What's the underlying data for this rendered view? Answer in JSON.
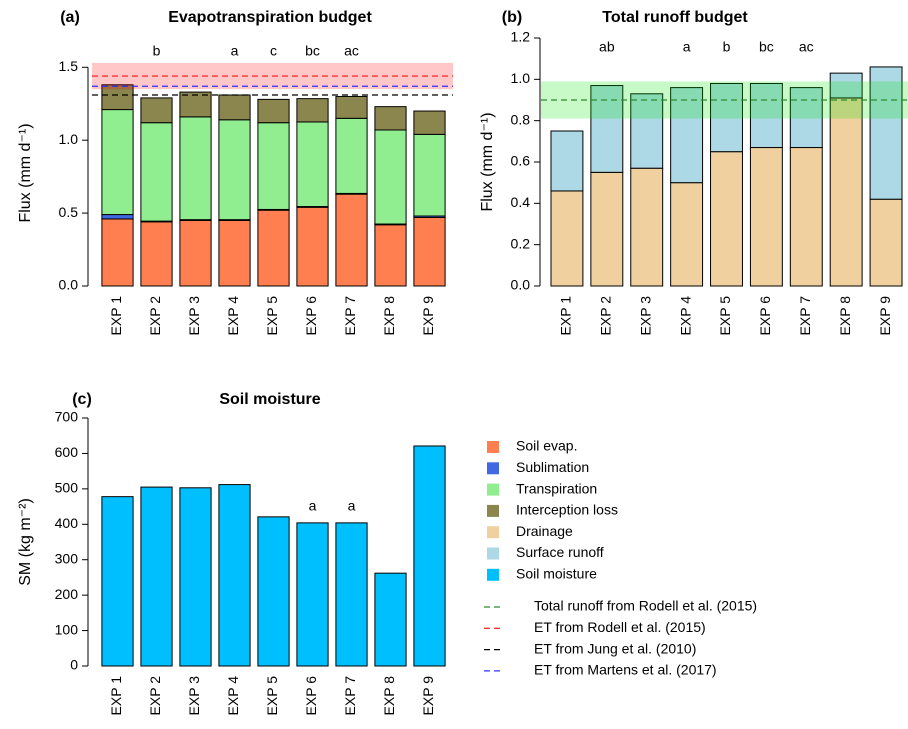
{
  "chart_data": [
    {
      "type": "stacked_bar",
      "panel": "(a)",
      "title": "Evapotranspiration budget",
      "y_label": "Flux (mm d⁻¹)",
      "categories": [
        "EXP 1",
        "EXP 2",
        "EXP 3",
        "EXP 4",
        "EXP 5",
        "EXP 6",
        "EXP 7",
        "EXP 8",
        "EXP 9"
      ],
      "series": [
        {
          "name": "Soil evap.",
          "color": "#ff7f50",
          "values": [
            0.46,
            0.44,
            0.45,
            0.45,
            0.52,
            0.54,
            0.63,
            0.42,
            0.47
          ]
        },
        {
          "name": "Sublimation",
          "color": "#4169e1",
          "values": [
            0.03,
            0.005,
            0.005,
            0.005,
            0.005,
            0.005,
            0.005,
            0.005,
            0.01
          ]
        },
        {
          "name": "Transpiration",
          "color": "#90ee90",
          "values": [
            0.72,
            0.675,
            0.705,
            0.685,
            0.595,
            0.58,
            0.515,
            0.645,
            0.56
          ]
        },
        {
          "name": "Interception loss",
          "color": "#8b864e",
          "values": [
            0.17,
            0.17,
            0.17,
            0.17,
            0.16,
            0.16,
            0.15,
            0.16,
            0.16
          ]
        }
      ],
      "letters": [
        null,
        "b",
        null,
        "a",
        "c",
        "bc",
        "ac",
        null,
        null
      ],
      "reference_lines": [
        {
          "name": "ET from Rodell et al. (2015)",
          "value": 1.44,
          "band": [
            1.35,
            1.53
          ],
          "color": "#ff3030",
          "band_color": "rgba(255,0,0,0.22)"
        },
        {
          "name": "ET from Jung et al. (2010)",
          "value": 1.31,
          "color": "#000000"
        },
        {
          "name": "ET from Martens et al. (2017)",
          "value": 1.37,
          "color": "#3030ff"
        }
      ],
      "ylim": [
        0,
        1.55
      ],
      "yticks": [
        {
          "value": 0,
          "label": "0.0"
        },
        0.5,
        {
          "value": 1,
          "label": "1.0"
        },
        1.5
      ]
    },
    {
      "type": "stacked_bar",
      "panel": "(b)",
      "title": "Total runoff budget",
      "y_label": "Flux (mm d⁻¹)",
      "categories": [
        "EXP 1",
        "EXP 2",
        "EXP 3",
        "EXP 4",
        "EXP 5",
        "EXP 6",
        "EXP 7",
        "EXP 8",
        "EXP 9"
      ],
      "series": [
        {
          "name": "Drainage",
          "color": "#efd09e",
          "values": [
            0.46,
            0.55,
            0.57,
            0.5,
            0.65,
            0.67,
            0.67,
            0.91,
            0.42
          ]
        },
        {
          "name": "Surface runoff",
          "color": "#add8e6",
          "values": [
            0.29,
            0.42,
            0.36,
            0.46,
            0.33,
            0.31,
            0.29,
            0.12,
            0.64
          ]
        }
      ],
      "letters": [
        null,
        "ab",
        null,
        "a",
        "b",
        "bc",
        "ac",
        null,
        null
      ],
      "reference_lines": [
        {
          "name": "Total runoff from Rodell et al. (2015)",
          "value": 0.9,
          "band": [
            0.81,
            0.99
          ],
          "color": "#2e8b2e",
          "band_color": "rgba(0,230,0,0.22)"
        }
      ],
      "ylim": [
        0,
        1.2
      ],
      "yticks": [
        {
          "value": 0,
          "label": "0.0"
        },
        0.2,
        0.4,
        0.6,
        0.8,
        {
          "value": 1,
          "label": "1.0"
        },
        1.2
      ]
    },
    {
      "type": "stacked_bar",
      "panel": "(c)",
      "title": "Soil moisture",
      "y_label": "SM (kg m⁻²)",
      "categories": [
        "EXP 1",
        "EXP 2",
        "EXP 3",
        "EXP 4",
        "EXP 5",
        "EXP 6",
        "EXP 7",
        "EXP 8",
        "EXP 9"
      ],
      "series": [
        {
          "name": "Soil moisture",
          "color": "#00bfff",
          "values": [
            478,
            505,
            503,
            512,
            421,
            404,
            404,
            262,
            621
          ]
        }
      ],
      "letters": [
        null,
        null,
        null,
        null,
        null,
        "a",
        "a",
        null,
        null
      ],
      "reference_lines": [],
      "ylim": [
        0,
        700
      ],
      "yticks": [
        0,
        100,
        200,
        300,
        400,
        500,
        600,
        700
      ]
    }
  ]
}
